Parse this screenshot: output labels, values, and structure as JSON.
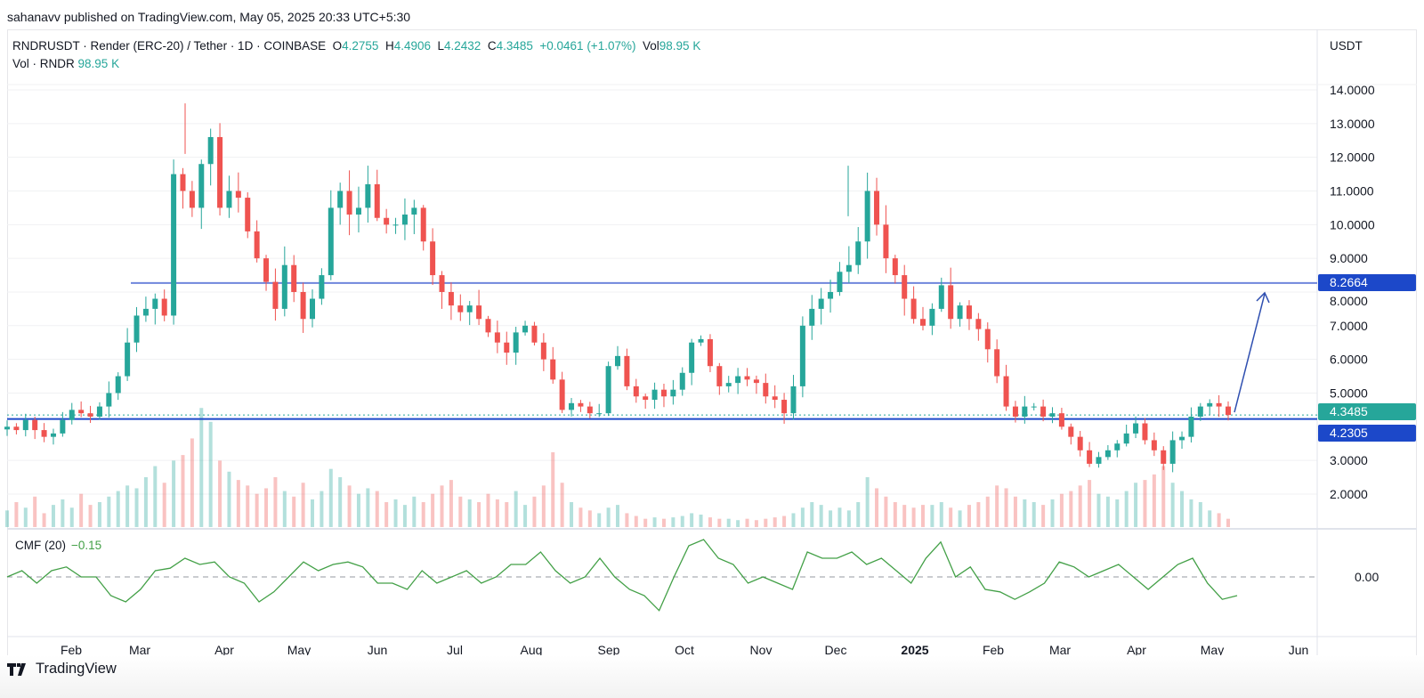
{
  "published": "sahanavv published on TradingView.com, May 05, 2025 20:33 UTC+5:30",
  "legend": {
    "symbol": "RNDRUSDT · Render (ERC-20) / Tether · 1D · COINBASE",
    "o_label": "O",
    "o": "4.2755",
    "h_label": "H",
    "h": "4.4906",
    "l_label": "L",
    "l": "4.2432",
    "c_label": "C",
    "c": "4.3485",
    "change": "+0.0461 (+1.07%)",
    "vol_label": "Vol",
    "vol": "98.95 K"
  },
  "volume_legend": {
    "label": "Vol · RNDR",
    "value": "98.95 K"
  },
  "currency": "USDT",
  "cmf_legend": {
    "label": "CMF (20)",
    "value": "−0.15"
  },
  "brand": "TradingView",
  "colors": {
    "up": "#26a69a",
    "down": "#ef5350",
    "resistance": "#6f86dc",
    "support": "#1c48c9",
    "cmf": "#43a047",
    "arrow": "#2f4fb0"
  },
  "chart_data": [
    {
      "type": "candlestick",
      "title": "RNDRUSDT · Render (ERC-20) / Tether · 1D · COINBASE",
      "x_range": [
        "2024-01-04",
        "2025-05-05"
      ],
      "x_tick_labels": [
        "Feb",
        "Mar",
        "Apr",
        "May",
        "Jun",
        "Jul",
        "Aug",
        "Sep",
        "Oct",
        "Nov",
        "Dec",
        "2025",
        "Feb",
        "Mar",
        "Apr",
        "May",
        "Jun"
      ],
      "ylabel": "USDT",
      "ylim": [
        1.0,
        15.0
      ],
      "y_tick_labels": [
        "14.0000",
        "13.0000",
        "12.0000",
        "11.0000",
        "10.0000",
        "9.0000",
        "8.0000",
        "7.0000",
        "6.0000",
        "5.0000",
        "3.0000",
        "2.0000"
      ],
      "sampling": "approx. every 4 days (close)",
      "closes": [
        4.0,
        3.9,
        4.2,
        3.9,
        3.7,
        3.8,
        4.2,
        4.5,
        4.4,
        4.3,
        4.6,
        5.0,
        5.5,
        6.5,
        7.3,
        7.5,
        7.8,
        7.3,
        11.5,
        11.0,
        10.5,
        11.8,
        12.6,
        10.5,
        11.0,
        10.8,
        9.8,
        9.0,
        8.3,
        7.5,
        8.8,
        8.0,
        7.2,
        7.8,
        8.5,
        10.5,
        11.0,
        10.3,
        10.5,
        11.2,
        10.2,
        10.0,
        10.0,
        10.3,
        10.5,
        9.5,
        8.5,
        8.0,
        7.6,
        7.4,
        7.6,
        7.2,
        6.8,
        6.5,
        6.2,
        6.8,
        7.0,
        6.5,
        6.0,
        5.4,
        4.5,
        4.7,
        4.6,
        4.4,
        4.4,
        5.8,
        6.1,
        5.2,
        4.9,
        4.8,
        5.1,
        4.9,
        5.1,
        5.6,
        6.5,
        6.6,
        5.8,
        5.2,
        5.3,
        5.5,
        5.4,
        5.3,
        4.9,
        4.8,
        4.4,
        5.2,
        7.0,
        7.5,
        7.8,
        8.0,
        8.6,
        8.8,
        9.5,
        11.0,
        10.0,
        9.0,
        8.5,
        7.8,
        7.2,
        7.0,
        7.5,
        8.2,
        7.2,
        7.6,
        7.2,
        6.9,
        6.3,
        5.5,
        4.6,
        4.3,
        4.6,
        4.6,
        4.3,
        4.4,
        4.0,
        3.7,
        3.3,
        2.9,
        3.1,
        3.3,
        3.5,
        3.8,
        4.1,
        3.6,
        3.3,
        2.9,
        3.6,
        3.7,
        4.3,
        4.6,
        4.7,
        4.6,
        4.3485
      ],
      "notable_highs": [
        {
          "date": "2024-03-18",
          "value": 13.6
        },
        {
          "date": "2024-12-06",
          "value": 11.75
        }
      ],
      "horizontal_levels": [
        {
          "name": "resistance",
          "value": 8.2664,
          "label": "8.2664"
        },
        {
          "name": "support",
          "value": 4.2305,
          "label": "4.2305"
        },
        {
          "name": "last_price",
          "value": 4.3485,
          "label": "4.3485"
        }
      ],
      "annotation": {
        "type": "arrow",
        "from_price": 4.35,
        "to_price": 8.0,
        "note": "projected move to resistance"
      }
    },
    {
      "type": "bar",
      "name": "Volume",
      "unit": "K",
      "ylim": [
        0,
        4500
      ],
      "values": [
        600,
        900,
        700,
        1100,
        500,
        800,
        1000,
        700,
        1200,
        800,
        900,
        1100,
        1300,
        1500,
        1400,
        1800,
        2200,
        1600,
        2400,
        2600,
        3200,
        4300,
        3800,
        2400,
        2000,
        1700,
        1500,
        1200,
        1400,
        1800,
        1300,
        1100,
        1600,
        1000,
        1300,
        2100,
        1800,
        1500,
        1200,
        1400,
        1300,
        900,
        1000,
        800,
        1100,
        900,
        1200,
        1500,
        1700,
        1100,
        1000,
        900,
        1200,
        1000,
        900,
        1300,
        800,
        1100,
        1500,
        2700,
        1600,
        900,
        700,
        600,
        500,
        700,
        800,
        500,
        400,
        300,
        350,
        300,
        350,
        400,
        500,
        450,
        350,
        300,
        300,
        250,
        300,
        250,
        300,
        350,
        400,
        500,
        700,
        900,
        800,
        600,
        700,
        600,
        900,
        1800,
        1400,
        1100,
        900,
        800,
        700,
        800,
        800,
        900,
        700,
        600,
        800,
        900,
        1100,
        1500,
        1400,
        1100,
        1000,
        900,
        800,
        1000,
        1200,
        1300,
        1500,
        1700,
        1200,
        1100,
        1000,
        1300,
        1600,
        1700,
        1900,
        2200,
        1600,
        1300,
        1000,
        900,
        600,
        500,
        300
      ]
    },
    {
      "type": "line",
      "name": "CMF (20)",
      "ylim": [
        -0.33,
        0.33
      ],
      "y_tick_labels": [
        "0.00"
      ],
      "values": [
        0.0,
        0.05,
        -0.05,
        0.05,
        0.08,
        0.0,
        0.0,
        -0.15,
        -0.2,
        -0.1,
        0.05,
        0.07,
        0.15,
        0.1,
        0.12,
        0.0,
        -0.05,
        -0.2,
        -0.12,
        0.0,
        0.12,
        0.05,
        0.1,
        0.12,
        0.08,
        -0.05,
        -0.05,
        -0.1,
        0.05,
        -0.05,
        0.0,
        0.05,
        -0.05,
        0.0,
        0.1,
        0.1,
        0.2,
        0.05,
        -0.05,
        0.0,
        0.15,
        0.0,
        -0.1,
        -0.15,
        -0.27,
        0.0,
        0.25,
        0.3,
        0.15,
        0.1,
        -0.05,
        0.0,
        -0.05,
        -0.1,
        0.2,
        0.15,
        0.15,
        0.2,
        0.1,
        0.15,
        0.05,
        -0.05,
        0.15,
        0.28,
        0.0,
        0.08,
        -0.1,
        -0.12,
        -0.18,
        -0.12,
        -0.05,
        0.12,
        0.08,
        0.0,
        0.05,
        0.1,
        0.0,
        -0.1,
        0.0,
        0.1,
        0.15,
        -0.05,
        -0.18,
        -0.15
      ]
    }
  ]
}
